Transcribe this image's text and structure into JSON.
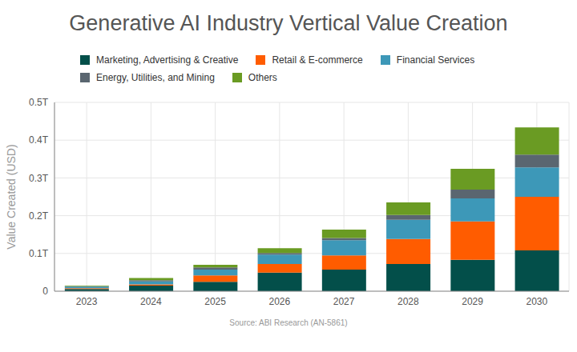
{
  "chart_data": {
    "type": "bar",
    "title": "Generative AI Industry Vertical Value Creation",
    "y_label": "Value Created (USD)",
    "annotation": "Source: ABI Research (AN-5861)",
    "categories": [
      "2023",
      "2024",
      "2025",
      "2026",
      "2027",
      "2028",
      "2029",
      "2030"
    ],
    "series": [
      {
        "name": "Marketing, Advertising & Creative",
        "color": "#034f4a",
        "values": [
          0.006,
          0.015,
          0.025,
          0.049,
          0.057,
          0.072,
          0.083,
          0.108
        ]
      },
      {
        "name": "Retail & E-commerce",
        "color": "#ff5c00",
        "values": [
          0.002,
          0.003,
          0.017,
          0.023,
          0.038,
          0.066,
          0.102,
          0.142
        ]
      },
      {
        "name": "Financial Services",
        "color": "#3d98b8",
        "values": [
          0.004,
          0.008,
          0.015,
          0.025,
          0.04,
          0.051,
          0.061,
          0.078
        ]
      },
      {
        "name": "Energy, Utilities, and Mining",
        "color": "#5a6670",
        "values": [
          0.001,
          0.003,
          0.006,
          0.004,
          0.006,
          0.013,
          0.023,
          0.034
        ]
      },
      {
        "name": "Others",
        "color": "#6a9b23",
        "values": [
          0.002,
          0.006,
          0.007,
          0.013,
          0.022,
          0.033,
          0.055,
          0.072
        ]
      }
    ],
    "ylim": [
      0,
      0.5
    ],
    "yticks": [
      0,
      {
        "value": 0.1,
        "label": "0.1T"
      },
      {
        "value": 0.2,
        "label": "0.2T"
      },
      {
        "value": 0.3,
        "label": "0.3T"
      },
      {
        "value": 0.4,
        "label": "0.4T"
      },
      {
        "value": 0.5,
        "label": "0.5T"
      }
    ],
    "stacked": true,
    "grid": true,
    "legend": "top"
  }
}
